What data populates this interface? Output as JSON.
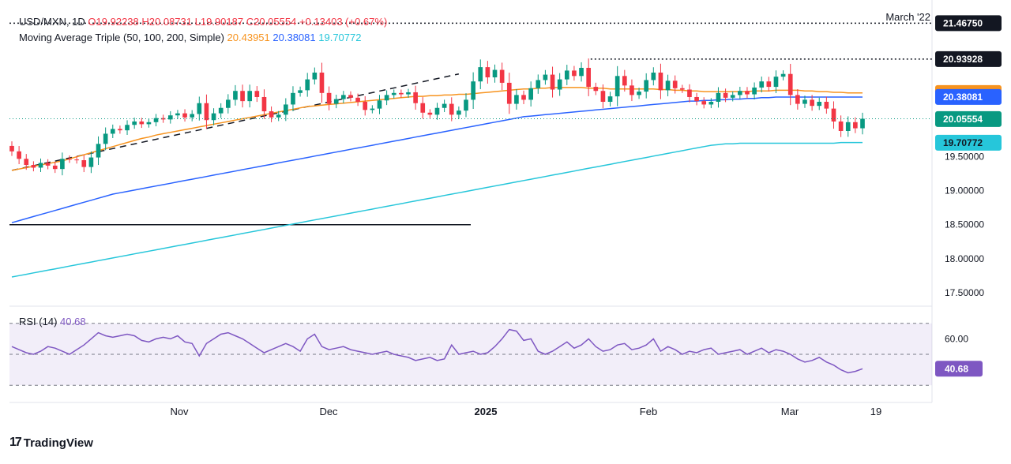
{
  "header": {
    "symbol": "USD/MXN, 1D",
    "ohlc_o": "O19.92238",
    "ohlc_h": "H20.08731",
    "ohlc_l": "L19.90187",
    "ohlc_c": "C20.05554",
    "ohlc_change": "+0.13403 (+0.67%)",
    "ma_title": "Moving Average Triple (50, 100, 200, Simple)",
    "ma_values": [
      "20.43951",
      "20.38081",
      "19.70772"
    ]
  },
  "rsi": {
    "title": "RSI (14)",
    "value": "40.68",
    "ticks": [
      "60.00"
    ],
    "color": "#7e57c2"
  },
  "annotations": {
    "march_22": "March '22"
  },
  "brand": {
    "name": "TradingView"
  },
  "colors": {
    "up": "#089981",
    "down": "#f23645",
    "ma50": "#f7931e",
    "ma100": "#2962ff",
    "ma200": "#26c6da",
    "rsi": "#7e57c2"
  },
  "chart_data": {
    "type": "candlestick",
    "x_tick_labels": [
      "Nov",
      "Dec",
      "2025",
      "Feb",
      "Mar",
      "19"
    ],
    "y_tick_labels": [
      "19.50000",
      "19.00000",
      "18.50000",
      "18.00000",
      "17.50000"
    ],
    "y_range": [
      17.3,
      21.6
    ],
    "price_badges": [
      {
        "label": "21.46750",
        "value": 21.4675,
        "style": "dark"
      },
      {
        "label": "20.93928",
        "value": 20.93928,
        "style": "dark"
      },
      {
        "label": "20.43951",
        "value": 20.43951,
        "style": "ma50"
      },
      {
        "label": "20.38081",
        "value": 20.38081,
        "style": "ma100"
      },
      {
        "label": "20.05554",
        "value": 20.05554,
        "style": "up"
      },
      {
        "label": "19.70772",
        "value": 19.70772,
        "style": "ma200"
      }
    ],
    "horizontal_levels": [
      {
        "value": 21.4675,
        "style": "dotted",
        "from": 0.0,
        "to": 1.0
      },
      {
        "value": 20.93928,
        "style": "dotted",
        "from": 0.63,
        "to": 1.0
      },
      {
        "value": 18.5,
        "style": "solid",
        "from": 0.0,
        "to": 0.5
      }
    ],
    "trendline": {
      "from": [
        0,
        19.3
      ],
      "to": [
        62,
        20.72
      ]
    },
    "close": [
      19.58,
      19.47,
      19.38,
      19.34,
      19.41,
      19.37,
      19.32,
      19.47,
      19.46,
      19.45,
      19.35,
      19.49,
      19.69,
      19.84,
      19.91,
      19.89,
      19.97,
      20.02,
      19.98,
      20.01,
      20.07,
      20.05,
      20.11,
      20.14,
      20.08,
      20.13,
      20.29,
      20.04,
      20.14,
      20.22,
      20.34,
      20.47,
      20.32,
      20.47,
      20.38,
      20.17,
      20.08,
      20.12,
      20.27,
      20.44,
      20.48,
      20.64,
      20.74,
      20.44,
      20.28,
      20.35,
      20.41,
      20.37,
      20.31,
      20.19,
      20.21,
      20.33,
      20.41,
      20.44,
      20.42,
      20.45,
      20.29,
      20.15,
      20.12,
      20.22,
      20.28,
      20.12,
      20.18,
      20.34,
      20.61,
      20.82,
      20.67,
      20.78,
      20.59,
      20.28,
      20.41,
      20.34,
      20.51,
      20.63,
      20.71,
      20.49,
      20.64,
      20.77,
      20.69,
      20.81,
      20.53,
      20.47,
      20.31,
      20.39,
      20.69,
      20.55,
      20.41,
      20.46,
      20.63,
      20.74,
      20.48,
      20.62,
      20.51,
      20.49,
      20.38,
      20.32,
      20.27,
      20.31,
      20.44,
      20.37,
      20.41,
      20.47,
      20.42,
      20.52,
      20.61,
      20.53,
      20.68,
      20.72,
      20.41,
      20.28,
      20.34,
      20.25,
      20.31,
      20.21,
      20.02,
      19.88,
      20.01,
      19.92,
      20.06
    ],
    "rsi": [
      55,
      53,
      51,
      50,
      52,
      55,
      54,
      52,
      50,
      53,
      56,
      60,
      64,
      62,
      61,
      62,
      63,
      62,
      59,
      58,
      60,
      61,
      60,
      62,
      58,
      57,
      49,
      57,
      60,
      63,
      64,
      62,
      60,
      57,
      54,
      51,
      53,
      55,
      57,
      55,
      52,
      60,
      63,
      55,
      53,
      54,
      55,
      53,
      52,
      51,
      50,
      51,
      52,
      50,
      49,
      48,
      46,
      47,
      48,
      46,
      47,
      56,
      50,
      51,
      52,
      50,
      51,
      55,
      60,
      66,
      65,
      59,
      60,
      52,
      50,
      52,
      55,
      58,
      54,
      56,
      60,
      55,
      52,
      53,
      56,
      57,
      53,
      54,
      56,
      60,
      52,
      55,
      53,
      50,
      52,
      51,
      53,
      54,
      50,
      51,
      52,
      53,
      50,
      52,
      54,
      51,
      53,
      52,
      50,
      47,
      45,
      46,
      48,
      45,
      43,
      40,
      38,
      39,
      40.68
    ],
    "ma50": [
      19.3,
      19.32,
      19.34,
      19.36,
      19.38,
      19.4,
      19.42,
      19.44,
      19.47,
      19.5,
      19.53,
      19.56,
      19.59,
      19.62,
      19.65,
      19.68,
      19.71,
      19.74,
      19.77,
      19.79,
      19.82,
      19.84,
      19.86,
      19.88,
      19.9,
      19.92,
      19.94,
      19.96,
      19.98,
      20.0,
      20.02,
      20.04,
      20.06,
      20.08,
      20.1,
      20.12,
      20.14,
      20.16,
      20.18,
      20.2,
      20.22,
      20.24,
      20.25,
      20.26,
      20.27,
      20.28,
      20.29,
      20.3,
      20.31,
      20.32,
      20.33,
      20.34,
      20.35,
      20.36,
      20.37,
      20.38,
      20.39,
      20.39,
      20.4,
      20.4,
      20.41,
      20.41,
      20.42,
      20.42,
      20.43,
      20.44,
      20.45,
      20.46,
      20.47,
      20.48,
      20.49,
      20.5,
      20.5,
      20.51,
      20.51,
      20.52,
      20.52,
      20.52,
      20.52,
      20.52,
      20.51,
      20.51,
      20.51,
      20.5,
      20.5,
      20.5,
      20.5,
      20.5,
      20.5,
      20.5,
      20.49,
      20.49,
      20.48,
      20.48,
      20.47,
      20.47,
      20.46,
      20.46,
      20.46,
      20.46,
      20.46,
      20.46,
      20.46,
      20.47,
      20.47,
      20.47,
      20.48,
      20.48,
      20.48,
      20.48,
      20.47,
      20.47,
      20.46,
      20.46,
      20.45,
      20.45,
      20.44,
      20.44,
      20.44
    ],
    "ma100": [
      18.53,
      18.56,
      18.59,
      18.62,
      18.65,
      18.68,
      18.71,
      18.74,
      18.77,
      18.8,
      18.83,
      18.86,
      18.89,
      18.92,
      18.95,
      18.97,
      18.99,
      19.01,
      19.03,
      19.05,
      19.07,
      19.09,
      19.11,
      19.13,
      19.15,
      19.17,
      19.19,
      19.21,
      19.23,
      19.25,
      19.27,
      19.29,
      19.31,
      19.33,
      19.35,
      19.37,
      19.39,
      19.41,
      19.43,
      19.45,
      19.47,
      19.49,
      19.51,
      19.53,
      19.55,
      19.57,
      19.59,
      19.61,
      19.63,
      19.65,
      19.67,
      19.69,
      19.71,
      19.73,
      19.75,
      19.77,
      19.79,
      19.81,
      19.83,
      19.85,
      19.87,
      19.89,
      19.91,
      19.93,
      19.95,
      19.97,
      19.99,
      20.01,
      20.03,
      20.05,
      20.07,
      20.09,
      20.1,
      20.11,
      20.12,
      20.13,
      20.14,
      20.15,
      20.16,
      20.17,
      20.18,
      20.19,
      20.2,
      20.21,
      20.22,
      20.23,
      20.24,
      20.25,
      20.26,
      20.27,
      20.28,
      20.29,
      20.3,
      20.31,
      20.32,
      20.32,
      20.33,
      20.33,
      20.34,
      20.34,
      20.35,
      20.35,
      20.36,
      20.36,
      20.37,
      20.37,
      20.38,
      20.38,
      20.38,
      20.38,
      20.38,
      20.38,
      20.38,
      20.38,
      20.38,
      20.38,
      20.38,
      20.38,
      20.38
    ],
    "ma200": [
      17.73,
      17.75,
      17.77,
      17.79,
      17.81,
      17.83,
      17.85,
      17.87,
      17.89,
      17.91,
      17.93,
      17.95,
      17.97,
      17.99,
      18.01,
      18.03,
      18.05,
      18.07,
      18.09,
      18.11,
      18.13,
      18.15,
      18.17,
      18.19,
      18.21,
      18.23,
      18.25,
      18.27,
      18.29,
      18.31,
      18.33,
      18.35,
      18.37,
      18.39,
      18.41,
      18.43,
      18.45,
      18.47,
      18.49,
      18.51,
      18.53,
      18.55,
      18.57,
      18.59,
      18.61,
      18.63,
      18.65,
      18.67,
      18.69,
      18.71,
      18.73,
      18.75,
      18.77,
      18.79,
      18.81,
      18.83,
      18.85,
      18.87,
      18.89,
      18.91,
      18.93,
      18.95,
      18.97,
      18.99,
      19.01,
      19.03,
      19.05,
      19.07,
      19.09,
      19.11,
      19.13,
      19.15,
      19.17,
      19.19,
      19.21,
      19.23,
      19.25,
      19.27,
      19.29,
      19.31,
      19.33,
      19.35,
      19.37,
      19.39,
      19.41,
      19.43,
      19.45,
      19.47,
      19.49,
      19.51,
      19.53,
      19.55,
      19.57,
      19.59,
      19.61,
      19.63,
      19.65,
      19.67,
      19.68,
      19.69,
      19.69,
      19.7,
      19.7,
      19.7,
      19.7,
      19.7,
      19.7,
      19.7,
      19.7,
      19.7,
      19.7,
      19.7,
      19.7,
      19.7,
      19.7,
      19.71,
      19.71,
      19.71,
      19.71
    ]
  }
}
